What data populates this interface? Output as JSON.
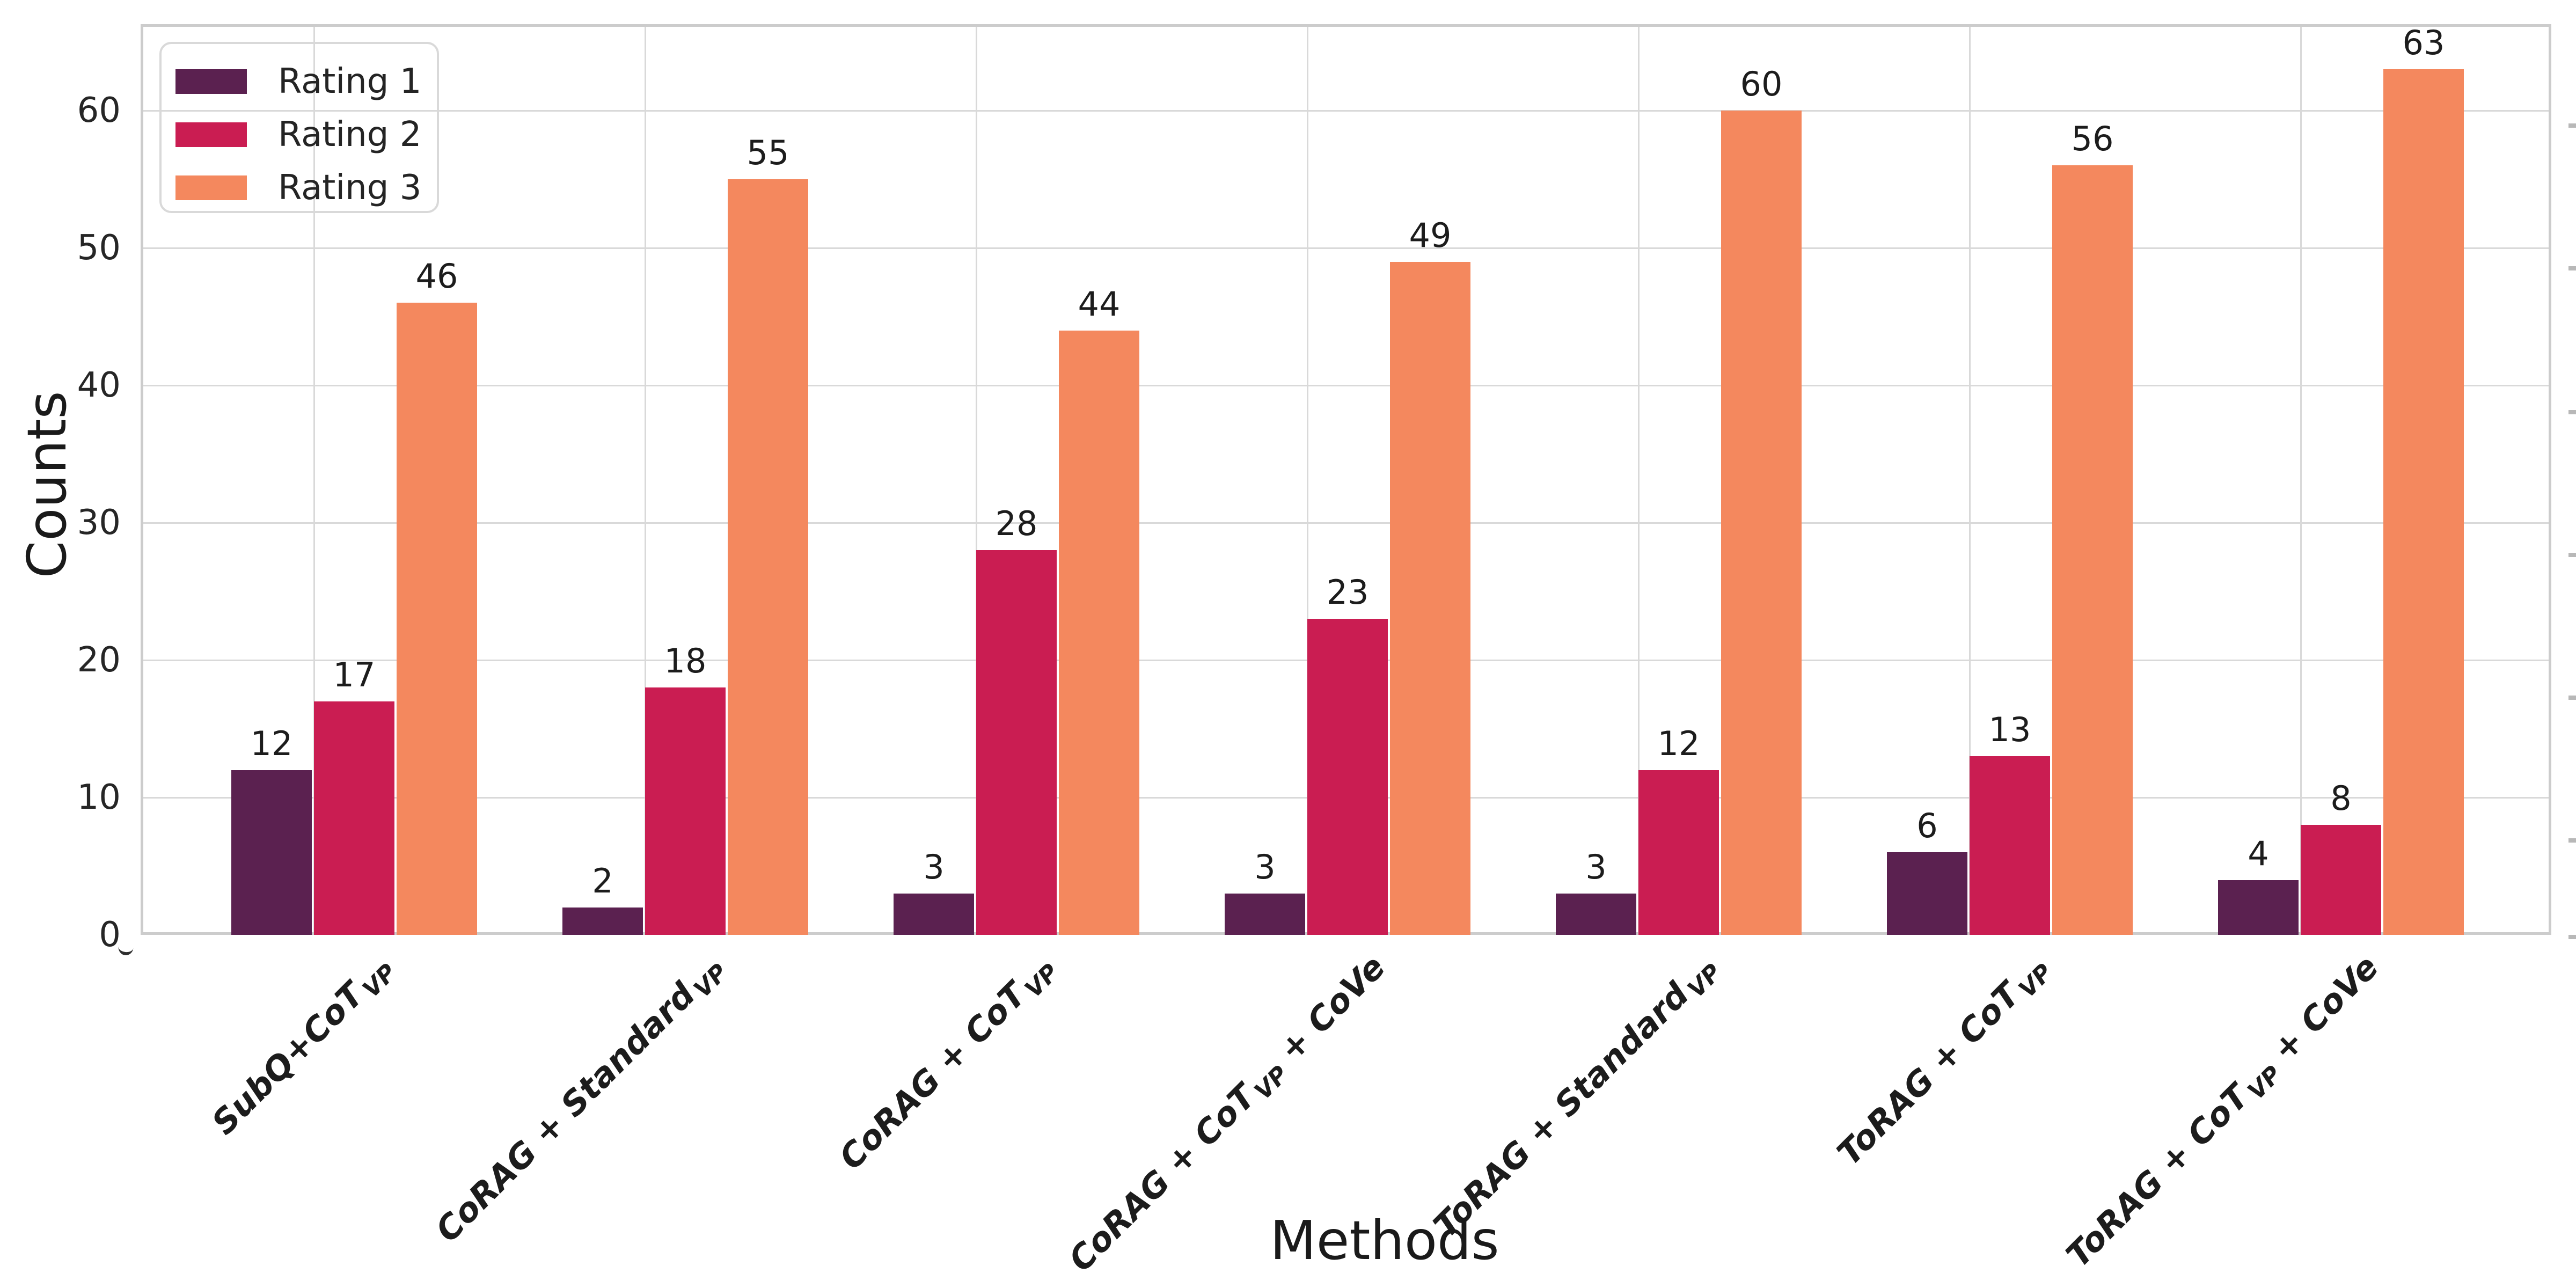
{
  "chart_data": {
    "type": "bar",
    "title": "",
    "xlabel": "Methods",
    "ylabel": "Counts",
    "categories_plain": [
      "SubQ+CoT_VP",
      "CoRAG + Standard_VP",
      "CoRAG + CoT_VP",
      "CoRAG + CoT_VP + CoVe",
      "ToRAG + Standard_VP",
      "ToRAG + CoT_VP",
      "ToRAG + CoT_VP + CoVe"
    ],
    "categories": [
      [
        {
          "t": "SubQ+CoT"
        },
        {
          "s": "VP"
        }
      ],
      [
        {
          "t": "CoRAG + Standard"
        },
        {
          "s": "VP"
        }
      ],
      [
        {
          "t": "CoRAG + CoT"
        },
        {
          "s": "VP"
        }
      ],
      [
        {
          "t": "CoRAG + CoT"
        },
        {
          "s": "VP"
        },
        {
          "t": " + CoVe"
        }
      ],
      [
        {
          "t": "ToRAG + Standard"
        },
        {
          "s": "VP"
        }
      ],
      [
        {
          "t": "ToRAG + CoT"
        },
        {
          "s": "VP"
        }
      ],
      [
        {
          "t": "ToRAG + CoT"
        },
        {
          "s": "VP"
        },
        {
          "t": " + CoVe"
        }
      ]
    ],
    "series": [
      {
        "name": "Rating 1",
        "color": "#5B2150",
        "values": [
          12,
          2,
          3,
          3,
          3,
          6,
          4
        ]
      },
      {
        "name": "Rating 2",
        "color": "#CA1D52",
        "values": [
          17,
          18,
          28,
          23,
          12,
          13,
          8
        ]
      },
      {
        "name": "Rating 3",
        "color": "#F4885E",
        "values": [
          46,
          55,
          44,
          49,
          60,
          56,
          63
        ]
      }
    ],
    "yticks": [
      0,
      10,
      20,
      30,
      40,
      50,
      60
    ],
    "ylim": [
      0,
      66.3
    ],
    "grid": true,
    "grid_color": "#d9d9d9",
    "legend_position": "upper left",
    "bar_value_labels": true,
    "text_color": "#1c1c1c"
  }
}
